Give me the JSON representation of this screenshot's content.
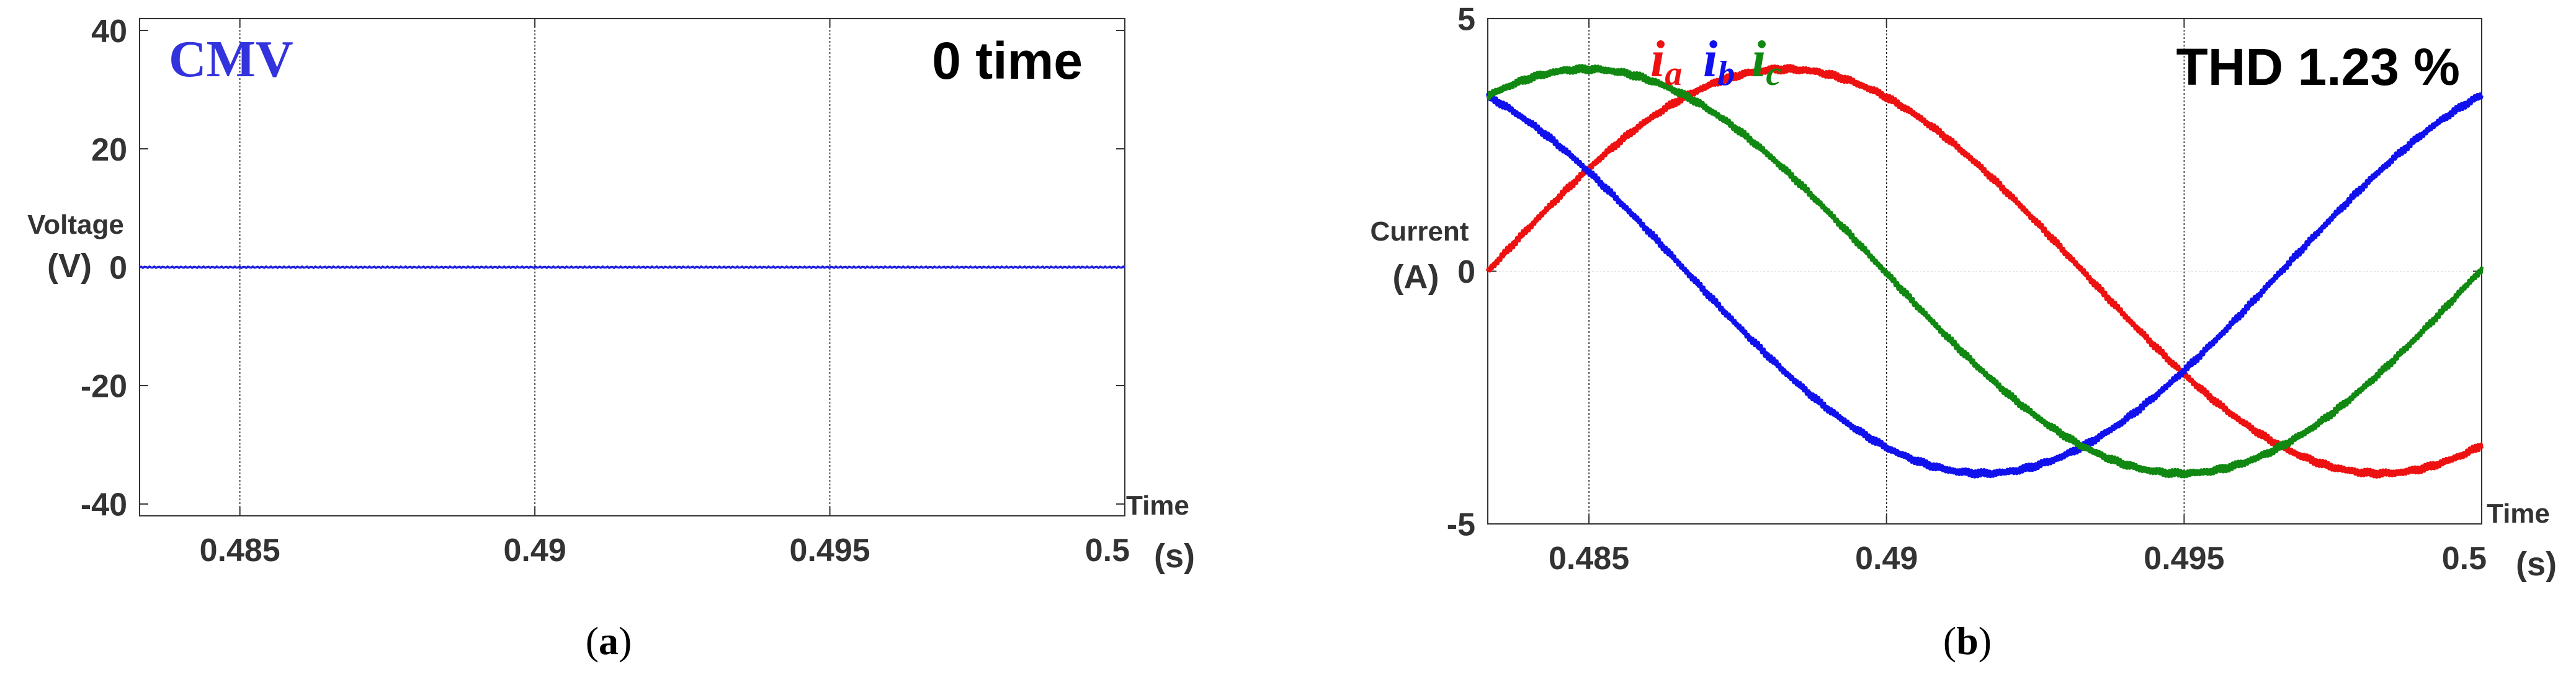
{
  "chart_data": [
    {
      "id": "a",
      "type": "line",
      "ylabel": [
        "Voltage",
        "(V)"
      ],
      "xlabel": [
        "Time",
        "(s)"
      ],
      "xlim": [
        0.4833,
        0.5
      ],
      "ylim": [
        -42,
        42
      ],
      "xticks": [
        0.485,
        0.49,
        0.495,
        0.5
      ],
      "xtick_labels": [
        "0.485",
        "0.49",
        "0.495",
        "0.5"
      ],
      "yticks": [
        40,
        20,
        0,
        -20,
        -40
      ],
      "ytick_labels": [
        "40",
        "20",
        "0",
        "-20",
        "-40"
      ],
      "grid_x": [
        0.485,
        0.49,
        0.495
      ],
      "series": [
        {
          "name": "CMV",
          "color": "#1f1fe0",
          "x": [
            0.4833,
            0.5
          ],
          "y": [
            0,
            0
          ]
        }
      ],
      "annotation": "0 time",
      "caption": "(a)",
      "caption_letter": "a"
    },
    {
      "id": "b",
      "type": "line",
      "ylabel": [
        "Current",
        "(A)"
      ],
      "xlabel": [
        "Time",
        "(s)"
      ],
      "xlim": [
        0.4833,
        0.5
      ],
      "ylim": [
        -5,
        5
      ],
      "xticks": [
        0.485,
        0.49,
        0.495,
        0.5
      ],
      "xtick_labels": [
        "0.485",
        "0.49",
        "0.495",
        "0.5"
      ],
      "yticks": [
        5,
        0,
        -5
      ],
      "ytick_labels": [
        "5",
        "0",
        "-5"
      ],
      "grid_x": [
        0.485,
        0.49,
        0.495
      ],
      "series": [
        {
          "name": "i_a",
          "main": "i",
          "sub": "a",
          "color": "#ee1111",
          "amplitude": 4,
          "frequency_hz": 50,
          "phase_zero_x": 0.4833
        },
        {
          "name": "i_b",
          "main": "i",
          "sub": "b",
          "color": "#1111ee",
          "amplitude": 4,
          "frequency_hz": 50,
          "phase_zero_x": 0.4766333
        },
        {
          "name": "i_c",
          "main": "i",
          "sub": "c",
          "color": "#118811",
          "amplitude": 4,
          "frequency_hz": 50,
          "phase_zero_x": 0.4799667
        }
      ],
      "annotation": "THD 1.23 %",
      "caption": "(b)",
      "caption_letter": "b"
    }
  ]
}
